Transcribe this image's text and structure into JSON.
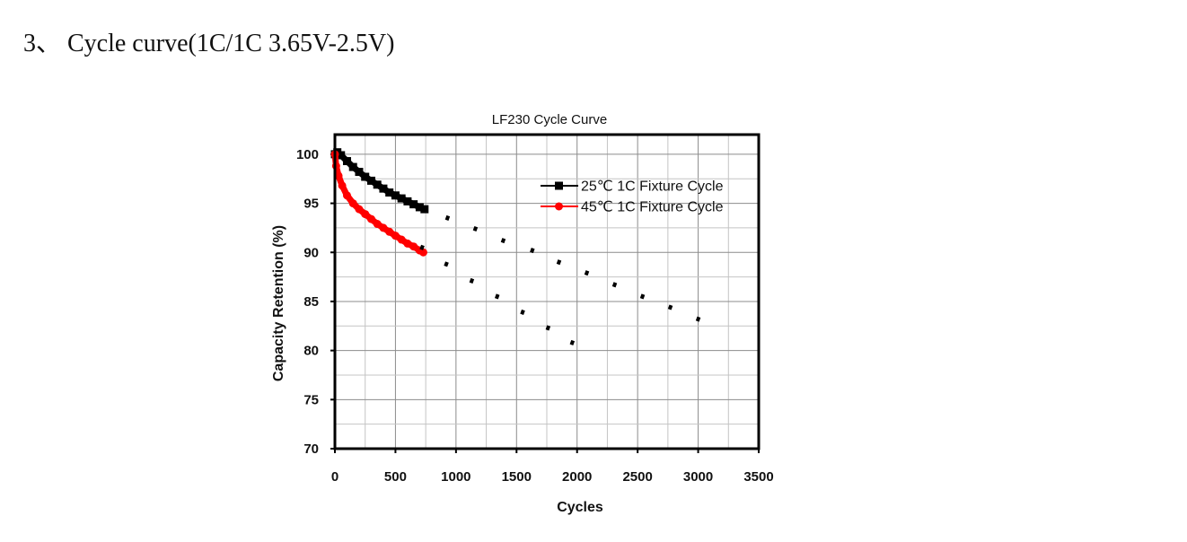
{
  "heading": "3、 Cycle curve(1C/1C 3.65V-2.5V)",
  "chart_data": {
    "type": "line",
    "title": "LF230 Cycle Curve",
    "xlabel": "Cycles",
    "ylabel": "Capacity Retention (%)",
    "xlim": [
      0,
      3500
    ],
    "ylim": [
      70,
      102
    ],
    "xticks": [
      0,
      500,
      1000,
      1500,
      2000,
      2500,
      3000,
      3500
    ],
    "yticks": [
      70,
      75,
      80,
      85,
      90,
      95,
      100
    ],
    "grid": true,
    "legend_position": "top-right",
    "series": [
      {
        "name": "25℃ 1C  Fixture Cycle",
        "color": "#000000",
        "marker": "square",
        "x": [
          0,
          20,
          50,
          100,
          150,
          200,
          250,
          300,
          350,
          400,
          450,
          500,
          550,
          600,
          650,
          700,
          740
        ],
        "y": [
          100.0,
          100.2,
          99.9,
          99.3,
          98.7,
          98.2,
          97.7,
          97.3,
          96.9,
          96.5,
          96.1,
          95.8,
          95.5,
          95.2,
          94.9,
          94.6,
          94.4
        ]
      },
      {
        "name": "45℃ 1C  Fixture Cycle",
        "color": "#ff0000",
        "marker": "circle",
        "x": [
          0,
          10,
          30,
          60,
          100,
          150,
          200,
          250,
          300,
          350,
          400,
          450,
          500,
          550,
          600,
          650,
          700,
          730
        ],
        "y": [
          100.0,
          98.8,
          97.8,
          96.8,
          95.8,
          95.0,
          94.4,
          93.9,
          93.4,
          92.9,
          92.5,
          92.1,
          91.7,
          91.3,
          90.9,
          90.6,
          90.2,
          90.0
        ]
      },
      {
        "color": "#000000",
        "marker": "dot",
        "style": "dotted",
        "x": [
          930,
          1160,
          1390,
          1630,
          1850,
          2080,
          2310,
          2540,
          2770,
          3000
        ],
        "y": [
          93.5,
          92.4,
          91.2,
          90.2,
          89.0,
          87.9,
          86.7,
          85.5,
          84.4,
          83.2
        ]
      },
      {
        "color": "#000000",
        "marker": "dot",
        "style": "dotted",
        "x": [
          720,
          920,
          1130,
          1340,
          1550,
          1760,
          1960
        ],
        "y": [
          90.5,
          88.8,
          87.1,
          85.5,
          83.9,
          82.3,
          80.8
        ]
      }
    ]
  }
}
